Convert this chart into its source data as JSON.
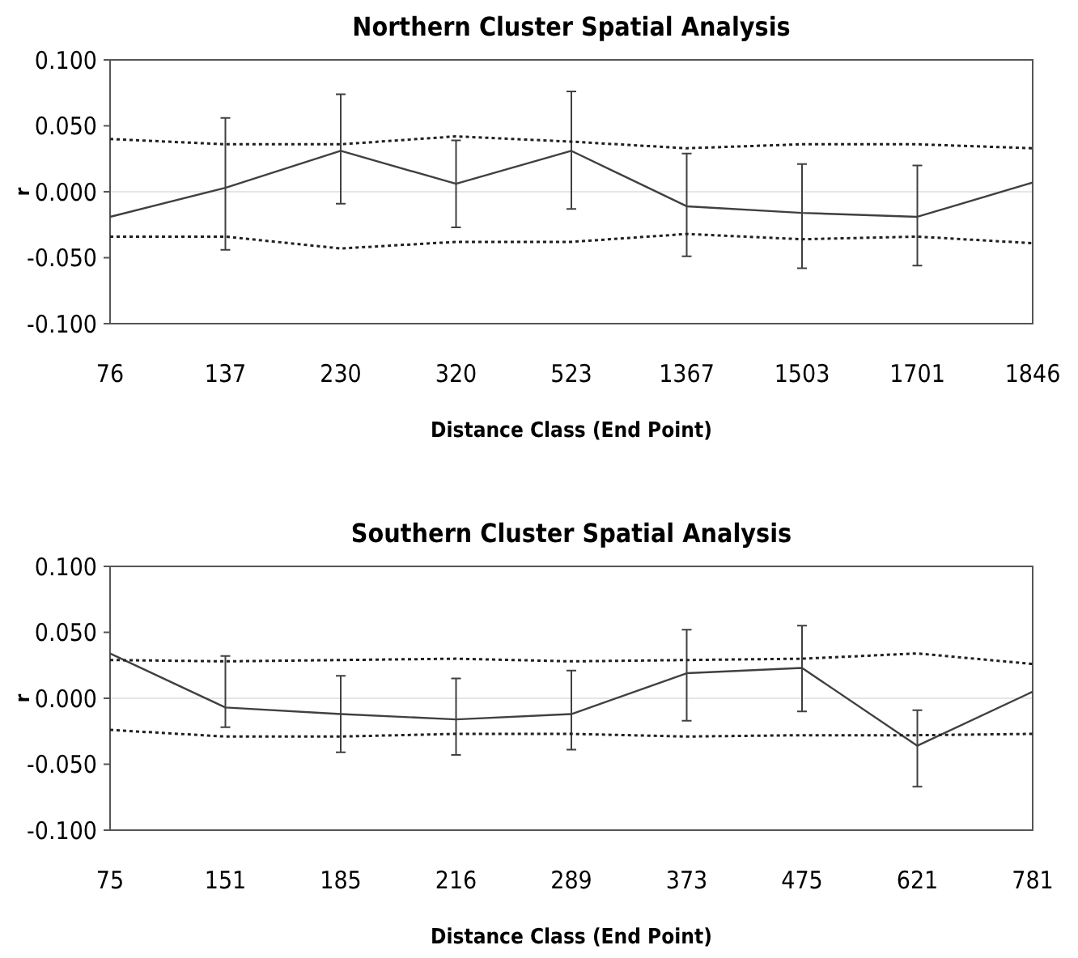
{
  "chart_data": [
    {
      "type": "line",
      "title": "Northern Cluster Spatial Analysis",
      "xlabel": "Distance Class (End Point)",
      "ylabel": "r",
      "categories": [
        "76",
        "137",
        "230",
        "320",
        "523",
        "1367",
        "1503",
        "1701",
        "1846"
      ],
      "ylim": [
        -0.1,
        0.1
      ],
      "yticks": [
        {
          "value": -0.1,
          "label": "-0.100"
        },
        {
          "value": -0.05,
          "label": "-0.050"
        },
        {
          "value": 0,
          "label": "0.000"
        },
        {
          "value": 0.05,
          "label": "0.050"
        },
        {
          "value": 0.1,
          "label": "0.100"
        }
      ],
      "grid": false,
      "marker": "none",
      "ref_lines": [
        {
          "axis": "y",
          "value": 0,
          "color": "#e6e6e6"
        }
      ],
      "series": [
        {
          "color": "#404040",
          "line_style": "solid",
          "values": [
            -0.019,
            0.003,
            0.031,
            0.006,
            0.031,
            -0.011,
            -0.016,
            -0.019,
            0.007
          ],
          "errors": [
            null,
            [
              -0.044,
              0.056
            ],
            [
              -0.009,
              0.074
            ],
            [
              -0.027,
              0.039
            ],
            [
              -0.013,
              0.076
            ],
            [
              -0.049,
              0.029
            ],
            [
              -0.058,
              0.021
            ],
            [
              -0.056,
              0.02
            ],
            null
          ]
        },
        {
          "color": "#202020",
          "line_style": "dotted",
          "values": [
            0.04,
            0.036,
            0.036,
            0.042,
            0.038,
            0.033,
            0.036,
            0.036,
            0.033
          ]
        },
        {
          "color": "#202020",
          "line_style": "dotted",
          "values": [
            -0.034,
            -0.034,
            -0.043,
            -0.038,
            -0.038,
            -0.032,
            -0.036,
            -0.034,
            -0.039
          ]
        }
      ]
    },
    {
      "type": "line",
      "title": "Southern Cluster Spatial Analysis",
      "xlabel": "Distance Class (End Point)",
      "ylabel": "r",
      "categories": [
        "75",
        "151",
        "185",
        "216",
        "289",
        "373",
        "475",
        "621",
        "781"
      ],
      "ylim": [
        -0.1,
        0.1
      ],
      "yticks": [
        {
          "value": -0.1,
          "label": "-0.100"
        },
        {
          "value": -0.05,
          "label": "-0.050"
        },
        {
          "value": 0,
          "label": "0.000"
        },
        {
          "value": 0.05,
          "label": "0.050"
        },
        {
          "value": 0.1,
          "label": "0.100"
        }
      ],
      "grid": false,
      "marker": "none",
      "ref_lines": [
        {
          "axis": "y",
          "value": 0,
          "color": "#e6e6e6"
        }
      ],
      "series": [
        {
          "color": "#404040",
          "line_style": "solid",
          "values": [
            0.034,
            -0.007,
            -0.012,
            -0.016,
            -0.012,
            0.019,
            0.023,
            -0.036,
            0.005
          ],
          "errors": [
            null,
            [
              -0.022,
              0.032
            ],
            [
              -0.041,
              0.017
            ],
            [
              -0.043,
              0.015
            ],
            [
              -0.039,
              0.021
            ],
            [
              -0.017,
              0.052
            ],
            [
              -0.01,
              0.055
            ],
            [
              -0.067,
              -0.009
            ],
            null
          ]
        },
        {
          "color": "#202020",
          "line_style": "dotted",
          "values": [
            0.029,
            0.028,
            0.029,
            0.03,
            0.028,
            0.029,
            0.03,
            0.034,
            0.026
          ]
        },
        {
          "color": "#202020",
          "line_style": "dotted",
          "values": [
            -0.024,
            -0.029,
            -0.029,
            -0.027,
            -0.027,
            -0.029,
            -0.028,
            -0.028,
            -0.027
          ]
        }
      ]
    }
  ]
}
